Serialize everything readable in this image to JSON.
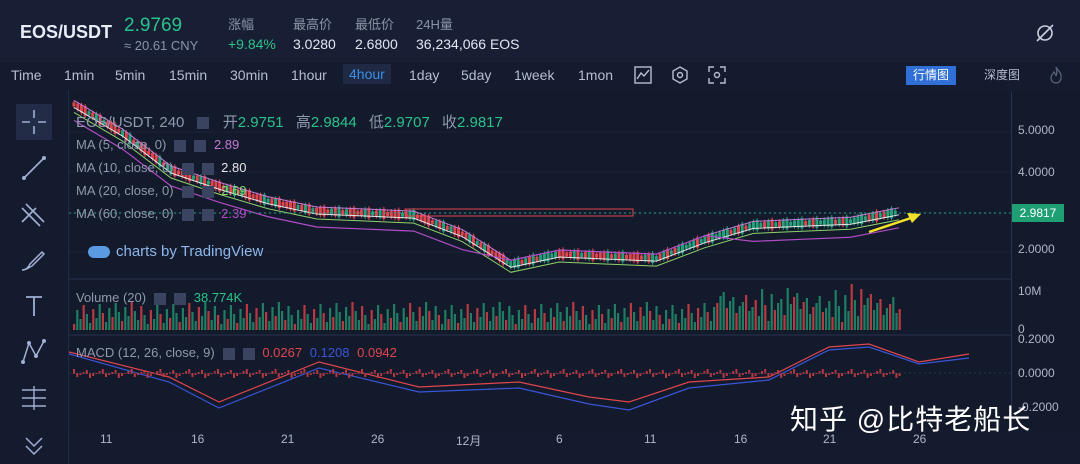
{
  "ticker": {
    "pair": "EOS/USDT",
    "price": "2.9769",
    "cny": "≈ 20.61 CNY",
    "stats": [
      {
        "label": "涨幅",
        "value": "+9.84%"
      },
      {
        "label": "最高价",
        "value": "3.0280"
      },
      {
        "label": "最低价",
        "value": "2.6800"
      },
      {
        "label": "24H量",
        "value": "36,234,066 EOS"
      }
    ]
  },
  "timeframes": [
    "Time",
    "1min",
    "5min",
    "15min",
    "30min",
    "1hour",
    "4hour",
    "1day",
    "5day",
    "1week",
    "1mon"
  ],
  "active_timeframe": "4hour",
  "modes": {
    "chart": "行情图",
    "depth": "深度图"
  },
  "main_legend": {
    "symbol": "EOS/USDT, 240",
    "open_label": "开",
    "open": "2.9751",
    "high_label": "高",
    "high": "2.9844",
    "low_label": "低",
    "low": "2.9707",
    "close_label": "收",
    "close": "2.9817",
    "ma": [
      {
        "label": "MA (5, close, 0)",
        "value": "2.89",
        "color": "#c67ad6"
      },
      {
        "label": "MA (10, close, 0)",
        "value": "2.80",
        "color": "#e6e6e6"
      },
      {
        "label": "MA (20, close, 0)",
        "value": "2.69",
        "color": "#8fd16a"
      },
      {
        "label": "MA (60, close, 0)",
        "value": "2.39",
        "color": "#b04cc4"
      }
    ]
  },
  "tradingview_label": "charts by TradingView",
  "price_axis": [
    "5.0000",
    "4.0000",
    "3.0000",
    "2.0000"
  ],
  "last_price": "2.9817",
  "volume_legend": {
    "label": "Volume (20)",
    "value": "38.774K"
  },
  "volume_axis": [
    "10M",
    "0"
  ],
  "macd_legend": {
    "label": "MACD (12, 26, close, 9)",
    "v1": "0.0267",
    "v2": "0.1208",
    "v3": "0.0942"
  },
  "macd_axis": [
    "0.2000",
    "0.0000",
    "-0.2000"
  ],
  "x_axis": [
    "11",
    "16",
    "21",
    "26",
    "12月",
    "6",
    "11",
    "16",
    "21",
    "26"
  ],
  "watermark": "知乎 @比特老船长",
  "colors": {
    "up": "#26a17b",
    "down": "#e0464d",
    "accent": "#3a8eea"
  },
  "chart_data": {
    "type": "line",
    "series": [
      {
        "x": [
          11,
          16,
          21,
          26,
          31,
          36,
          41,
          46,
          51,
          56,
          61,
          66,
          71,
          76,
          81,
          86,
          91,
          96
        ],
        "values": [
          5.6,
          4.9,
          4.0,
          3.6,
          3.25,
          3.0,
          2.95,
          2.9,
          2.45,
          1.7,
          1.95,
          1.9,
          1.85,
          2.3,
          2.65,
          2.7,
          2.75,
          2.98
        ]
      }
    ]
  }
}
